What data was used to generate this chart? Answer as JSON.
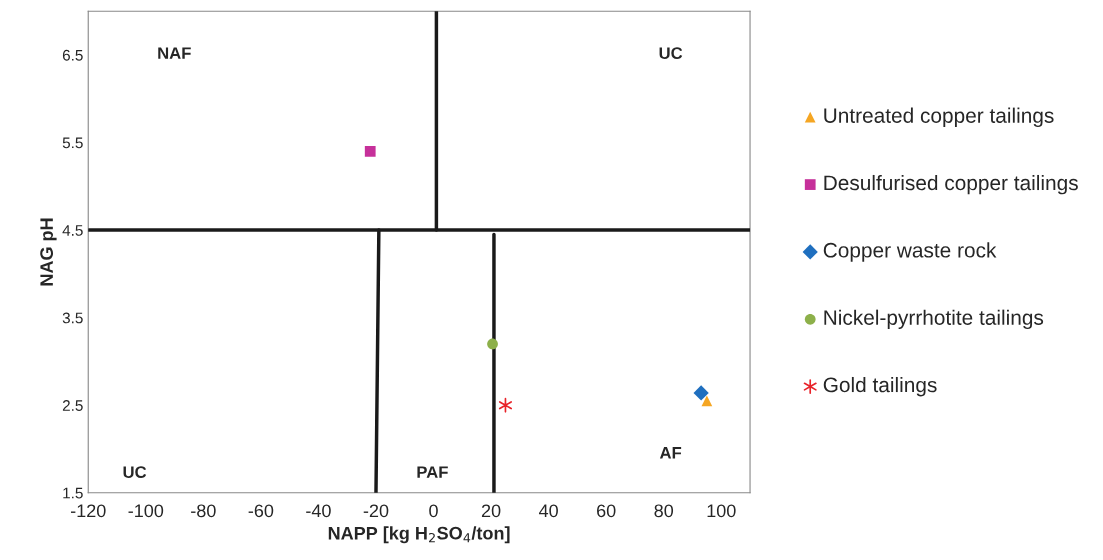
{
  "chart_data": {
    "type": "scatter",
    "xlabel": "NAPP [kg H$_{2}$SO$_{4}$/ton]",
    "ylabel": "NAG pH",
    "xlim": [
      -120,
      110
    ],
    "ylim": [
      1.5,
      7
    ],
    "xticks": [
      -120,
      -100,
      -80,
      -60,
      -40,
      -20,
      0,
      20,
      40,
      60,
      80,
      100
    ],
    "yticks": [
      1.5,
      2.5,
      3.5,
      4.5,
      5.5,
      6.5
    ],
    "grid": false,
    "legend": "right",
    "series": [
      {
        "name": "Untreated copper tailings",
        "color": "#f5a623",
        "marker": "triangle",
        "x": [
          95
        ],
        "values": [
          2.55
        ]
      },
      {
        "name": "Desulfurised copper tailings",
        "color": "#c6309a",
        "marker": "square",
        "x": [
          -22
        ],
        "values": [
          5.4
        ]
      },
      {
        "name": "Copper waste rock",
        "color": "#1f6fbf",
        "marker": "diamond",
        "x": [
          93
        ],
        "values": [
          2.64
        ]
      },
      {
        "name": "Nickel-pyrrhotite tailings",
        "color": "#8db04a",
        "marker": "circle",
        "x": [
          20.5
        ],
        "values": [
          3.2
        ]
      },
      {
        "name": "Gold tailings",
        "color": "#e8232a",
        "marker": "cross",
        "x": [
          25
        ],
        "values": [
          2.5
        ]
      },
      {
        "type": "line",
        "color": "#1a1a1a",
        "marker": "none",
        "x": [
          1,
          1
        ],
        "values": [
          4.5,
          7
        ]
      },
      {
        "type": "line",
        "color": "#1a1a1a",
        "marker": "none",
        "x": [
          -20,
          -19
        ],
        "values": [
          1.5,
          4.5
        ]
      },
      {
        "type": "line",
        "color": "#1a1a1a",
        "marker": "none",
        "x": [
          21,
          21
        ],
        "values": [
          1.5,
          4.45
        ]
      }
    ],
    "ref_lines": [
      {
        "axis": "y",
        "value": 4.5,
        "color": "#1a1a1a"
      }
    ],
    "annotations": [
      "NAF",
      "UC",
      "UC",
      "PAF",
      "AF"
    ]
  }
}
